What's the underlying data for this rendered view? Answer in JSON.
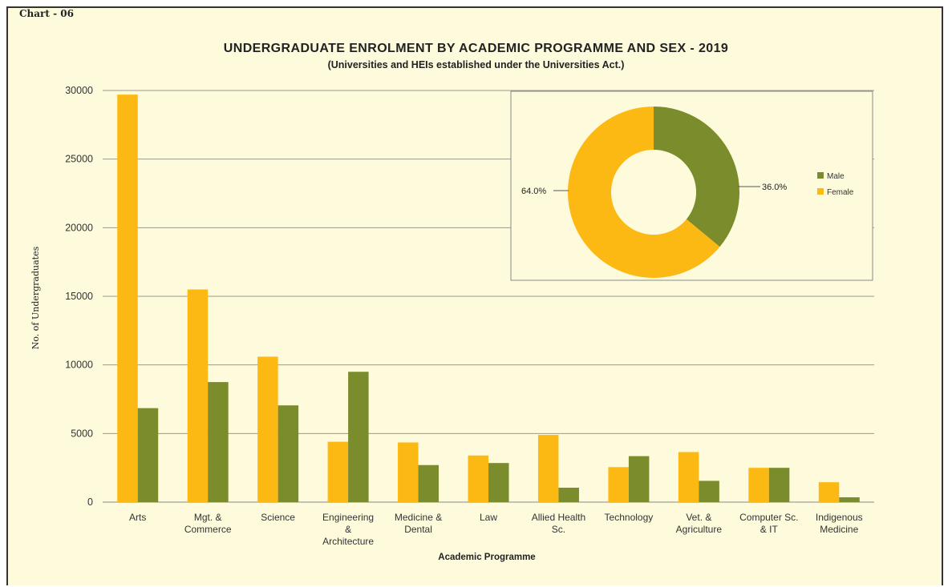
{
  "chart_label": "Chart - 06",
  "chart_data": [
    {
      "type": "bar",
      "title": "UNDERGRADUATE ENROLMENT BY ACADEMIC PROGRAMME AND SEX - 2019",
      "subtitle": "(Universities and HEIs established under the Universities Act.)",
      "xlabel": "Academic Programme",
      "ylabel": "No. of Undergraduates",
      "ylim": [
        0,
        30000
      ],
      "yticks": [
        0,
        5000,
        10000,
        15000,
        20000,
        25000,
        30000
      ],
      "grid": true,
      "categories": [
        [
          "Arts"
        ],
        [
          "Mgt. &",
          "Commerce"
        ],
        [
          "Science"
        ],
        [
          "Engineering",
          "&",
          "Architecture"
        ],
        [
          "Medicine &",
          "Dental"
        ],
        [
          "Law"
        ],
        [
          "Allied Health",
          "Sc."
        ],
        [
          "Technology"
        ],
        [
          "Vet. &",
          "Agriculture"
        ],
        [
          "Computer Sc.",
          "& IT"
        ],
        [
          "Indigenous",
          "Medicine"
        ]
      ],
      "series": [
        {
          "key": "female",
          "color": "#fdb913",
          "values": [
            29700,
            15500,
            10600,
            4400,
            4350,
            3400,
            4900,
            2550,
            3650,
            2500,
            1450
          ]
        },
        {
          "key": "male",
          "color": "#7b8c2c",
          "values": [
            6850,
            8750,
            7050,
            9500,
            2700,
            2850,
            1050,
            3350,
            1550,
            2500,
            350
          ]
        }
      ]
    },
    {
      "type": "pie",
      "donut": true,
      "legend_position": "right",
      "slices": [
        {
          "name": "Male",
          "value": 36.0,
          "label": "36.0%",
          "color": "#7b8c2c"
        },
        {
          "name": "Female",
          "value": 64.0,
          "label": "64.0%",
          "color": "#fdb913"
        }
      ]
    }
  ]
}
